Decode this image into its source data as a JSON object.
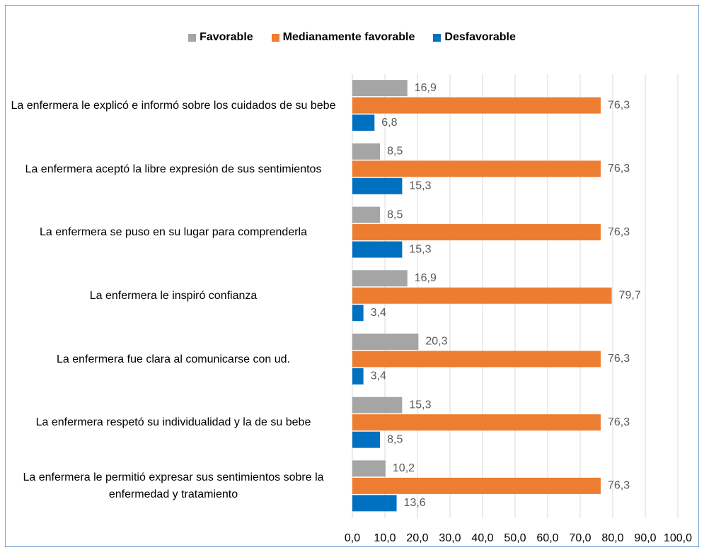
{
  "chart_data": {
    "type": "hbar",
    "categories": [
      "La enfermera le explicó e informó sobre los cuidados de su bebe",
      "La enfermera aceptó la libre expresión de sus sentimientos",
      "La enfermera se puso en su lugar para comprenderla",
      "La enfermera le inspiró confianza",
      "La enfermera fue clara al comunicarse con ud.",
      "La enfermera respetó su individualidad y la de su bebe",
      "La enfermera le permitió expresar sus sentimientos sobre la enfermedad y tratamiento"
    ],
    "series": [
      {
        "name": "Favorable",
        "color": "#a5a5a5",
        "values": [
          16.9,
          8.5,
          8.5,
          16.9,
          20.3,
          15.3,
          10.2
        ],
        "value_labels": [
          "16,9",
          "8,5",
          "8,5",
          "16,9",
          "20,3",
          "15,3",
          "10,2"
        ]
      },
      {
        "name": "Medianamente favorable",
        "color": "#ed7d31",
        "values": [
          76.3,
          76.3,
          76.3,
          79.7,
          76.3,
          76.3,
          76.3
        ],
        "value_labels": [
          "76,3",
          "76,3",
          "76,3",
          "79,7",
          "76,3",
          "76,3",
          "76,3"
        ]
      },
      {
        "name": "Desfavorable",
        "color": "#0070c0",
        "values": [
          6.8,
          15.3,
          15.3,
          3.4,
          3.4,
          8.5,
          13.6
        ],
        "value_labels": [
          "6,8",
          "15,3",
          "15,3",
          "3,4",
          "3,4",
          "8,5",
          "13,6"
        ]
      }
    ],
    "xlim": [
      0,
      100
    ],
    "xticks": [
      {
        "value": 0,
        "label": "0,0"
      },
      {
        "value": 10,
        "label": "10,0"
      },
      {
        "value": 20,
        "label": "20,0"
      },
      {
        "value": 30,
        "label": "30,0"
      },
      {
        "value": 40,
        "label": "40,0"
      },
      {
        "value": 50,
        "label": "50,0"
      },
      {
        "value": 60,
        "label": "60,0"
      },
      {
        "value": 70,
        "label": "70,0"
      },
      {
        "value": 80,
        "label": "80,0"
      },
      {
        "value": 90,
        "label": "90,0"
      },
      {
        "value": 100,
        "label": "100,0"
      }
    ],
    "grid": true,
    "legend": "top"
  }
}
